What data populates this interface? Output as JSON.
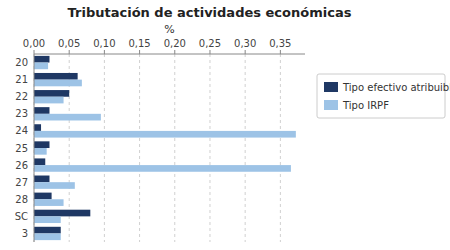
{
  "chart_data": {
    "type": "bar",
    "orientation": "horizontal",
    "title": "Tributación de actividades económicas",
    "xlabel": "%",
    "categories": [
      "20",
      "21",
      "22",
      "23",
      "24",
      "25",
      "26",
      "27",
      "28",
      "SC",
      "3"
    ],
    "series": [
      {
        "name": "Tipo efectivo atribuible",
        "color": "#1F3864",
        "values": [
          0.022,
          0.062,
          0.05,
          0.022,
          0.01,
          0.022,
          0.016,
          0.022,
          0.025,
          0.08,
          0.038
        ]
      },
      {
        "name": "Tipo IRPF",
        "color": "#9DC3E6",
        "values": [
          0.02,
          0.068,
          0.042,
          0.095,
          0.372,
          0.018,
          0.365,
          0.058,
          0.042,
          0.038,
          0.038
        ]
      }
    ],
    "xlim": [
      0,
      0.385
    ],
    "xticks": [
      {
        "value": 0.0,
        "label": "0,00"
      },
      {
        "value": 0.05,
        "label": "0,05"
      },
      {
        "value": 0.1,
        "label": "0,10"
      },
      {
        "value": 0.15,
        "label": "0,15"
      },
      {
        "value": 0.2,
        "label": "0,20"
      },
      {
        "value": 0.25,
        "label": "0,25"
      },
      {
        "value": 0.3,
        "label": "0,30"
      },
      {
        "value": 0.35,
        "label": "0,35"
      }
    ],
    "grid": true,
    "legend": "right"
  }
}
